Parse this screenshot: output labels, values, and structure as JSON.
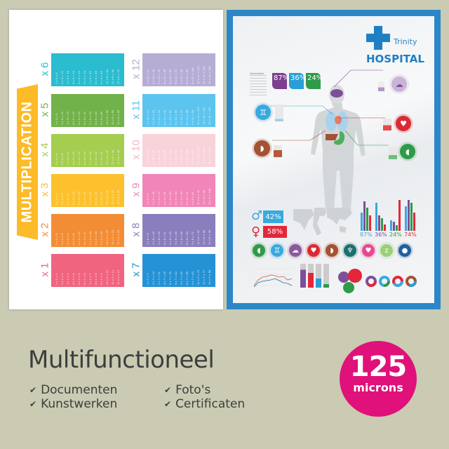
{
  "multiplication": {
    "title": "MULTIPLICATION",
    "tables": [
      {
        "label": "x 1",
        "color": "#f06480",
        "rows": [
          "1 x 1 = 1",
          "2 x 1 = 2",
          "3 x 1 = 3",
          "4 x 1 = 4",
          "5 x 1 = 5",
          "6 x 1 = 6",
          "7 x 1 = 7",
          "8 x 1 = 8",
          "9 x 1 = 9",
          "10 x 1 = 10",
          "11 x 1 = 11",
          "12 x 1 = 12"
        ]
      },
      {
        "label": "x 2",
        "color": "#f28d35",
        "rows": [
          "1 x 2 = 2",
          "2 x 2 = 4",
          "3 x 2 = 6",
          "4 x 2 = 8",
          "5 x 2 = 10",
          "6 x 2 = 12",
          "7 x 2 = 14",
          "8 x 2 = 16",
          "9 x 2 = 18",
          "10 x 2 = 20",
          "11 x 2 = 22",
          "12 x 2 = 24"
        ]
      },
      {
        "label": "x 3",
        "color": "#fcc12d",
        "rows": [
          "1 x 3 = 3",
          "2 x 3 = 6",
          "3 x 3 = 9",
          "4 x 3 = 12",
          "5 x 3 = 15",
          "6 x 3 = 18",
          "7 x 3 = 21",
          "8 x 3 = 24",
          "9 x 3 = 27",
          "10 x 3 = 30",
          "11 x 3 = 33",
          "12 x 3 = 36"
        ]
      },
      {
        "label": "x 4",
        "color": "#a5cd4f",
        "rows": [
          "1 x 4 = 4",
          "2 x 4 = 8",
          "3 x 4 = 12",
          "4 x 4 = 16",
          "5 x 4 = 20",
          "6 x 4 = 24",
          "7 x 4 = 28",
          "8 x 4 = 32",
          "9 x 4 = 36",
          "10 x 4 = 40",
          "11 x 4 = 44",
          "12 x 4 = 48"
        ]
      },
      {
        "label": "x 5",
        "color": "#72b24a",
        "rows": [
          "1 x 5 = 5",
          "2 x 5 = 10",
          "3 x 5 = 15",
          "4 x 5 = 20",
          "5 x 5 = 25",
          "6 x 5 = 30",
          "7 x 5 = 35",
          "8 x 5 = 40",
          "9 x 5 = 45",
          "10 x 5 = 50",
          "11 x 5 = 55",
          "12 x 5 = 60"
        ]
      },
      {
        "label": "x 6",
        "color": "#2bbcd0",
        "rows": [
          "1 x 6 = 6",
          "2 x 6 = 12",
          "3 x 6 = 18",
          "4 x 6 = 24",
          "5 x 6 = 30",
          "6 x 6 = 36",
          "7 x 6 = 42",
          "8 x 6 = 48",
          "9 x 6 = 54",
          "10 x 6 = 60",
          "11 x 6 = 66",
          "12 x 6 = 72"
        ]
      },
      {
        "label": "x 7",
        "color": "#2592d5",
        "rows": [
          "1 x 7 = 7",
          "2 x 7 = 14",
          "3 x 7 = 21",
          "4 x 7 = 28",
          "5 x 7 = 35",
          "6 x 7 = 42",
          "7 x 7 = 49",
          "8 x 7 = 56",
          "9 x 7 = 63",
          "10 x 7 = 70",
          "11 x 7 = 77",
          "12 x 7 = 84"
        ]
      },
      {
        "label": "x 8",
        "color": "#8a7ebd",
        "rows": [
          "1 x 8 = 8",
          "2 x 8 = 16",
          "3 x 8 = 24",
          "4 x 8 = 32",
          "5 x 8 = 40",
          "6 x 8 = 48",
          "7 x 8 = 56",
          "8 x 8 = 64",
          "9 x 8 = 72",
          "10 x 8 = 80",
          "11 x 8 = 88",
          "12 x 8 = 96"
        ]
      },
      {
        "label": "x 9",
        "color": "#f185b8",
        "rows": [
          "1 x 9 = 9",
          "2 x 9 = 18",
          "3 x 9 = 27",
          "4 x 9 = 36",
          "5 x 9 = 45",
          "6 x 9 = 54",
          "7 x 9 = 63",
          "8 x 9 = 72",
          "9 x 9 = 81",
          "10 x 9 = 90",
          "11 x 9 = 99",
          "12 x 9 = 108"
        ]
      },
      {
        "label": "x 10",
        "color": "#f8d3da",
        "rows": [
          "1 x 10 = 10",
          "2 x 10 = 20",
          "3 x 10 = 30",
          "4 x 10 = 40",
          "5 x 10 = 50",
          "6 x 10 = 60",
          "7 x 10 = 70",
          "8 x 10 = 80",
          "9 x 10 = 90",
          "10 x 10 = 100",
          "11 x 10 = 110",
          "12 x 10 = 120"
        ]
      },
      {
        "label": "x 11",
        "color": "#5cc4ee",
        "rows": [
          "1 x 11 = 11",
          "2 x 11 = 22",
          "3 x 11 = 33",
          "4 x 11 = 44",
          "5 x 11 = 55",
          "6 x 11 = 66",
          "7 x 11 = 77",
          "8 x 11 = 88",
          "9 x 11 = 99",
          "10 x 11 = 110",
          "11 x 11 = 121",
          "12 x 11 = 132"
        ]
      },
      {
        "label": "x 12",
        "color": "#b6add5",
        "rows": [
          "1 x 12 = 12",
          "2 x 12 = 24",
          "3 x 12 = 36",
          "4 x 12 = 48",
          "5 x 12 = 60",
          "6 x 12 = 72",
          "7 x 12 = 84",
          "8 x 12 = 96",
          "9 x 12 = 108",
          "10 x 12 = 120",
          "11 x 12 = 132",
          "12 x 12 = 144"
        ]
      }
    ]
  },
  "hospital": {
    "brand_small": "Trinity",
    "brand_large": "HOSPITAL",
    "info_heading": "Information",
    "stats": [
      {
        "value": "87%",
        "color": "#7d3f8f"
      },
      {
        "value": "36%",
        "color": "#2a9fd6"
      },
      {
        "value": "24%",
        "color": "#2f9a48"
      }
    ],
    "gender": [
      {
        "value": "42%",
        "color": "#39a9df"
      },
      {
        "value": "58%",
        "color": "#e3273a"
      }
    ],
    "bar_labels": [
      {
        "value": "87%",
        "color": "#39a9df"
      },
      {
        "value": "36%",
        "color": "#7d4f9a"
      },
      {
        "value": "24%",
        "color": "#2f9a48"
      },
      {
        "value": "74%",
        "color": "#e3273a"
      }
    ],
    "organ_icons": [
      {
        "icon": "stomach-icon",
        "color": "#2f9a48",
        "glyph": "◖"
      },
      {
        "icon": "lungs-icon",
        "color": "#39a9df",
        "glyph": "♊"
      },
      {
        "icon": "brain-icon",
        "color": "#8a5a9e",
        "glyph": "☁"
      },
      {
        "icon": "heart-organ-icon",
        "color": "#d92b33",
        "glyph": "♥"
      },
      {
        "icon": "liver-icon",
        "color": "#a35233",
        "glyph": "◗"
      },
      {
        "icon": "tooth-icon",
        "color": "#1f6f6f",
        "glyph": "♆"
      },
      {
        "icon": "heart-icon",
        "color": "#e54a8f",
        "glyph": "♥"
      },
      {
        "icon": "sleep-icon",
        "color": "#9bcf7a",
        "glyph": "z"
      },
      {
        "icon": "apple-icon",
        "color": "#1f5f9f",
        "glyph": "●"
      }
    ]
  },
  "footer": {
    "title": "Multifunctioneel",
    "features": [
      "Documenten",
      "Kunstwerken",
      "Foto's",
      "Certificaten"
    ],
    "badge_number": "125",
    "badge_unit": "microns",
    "badge_color": "#e0117a"
  }
}
